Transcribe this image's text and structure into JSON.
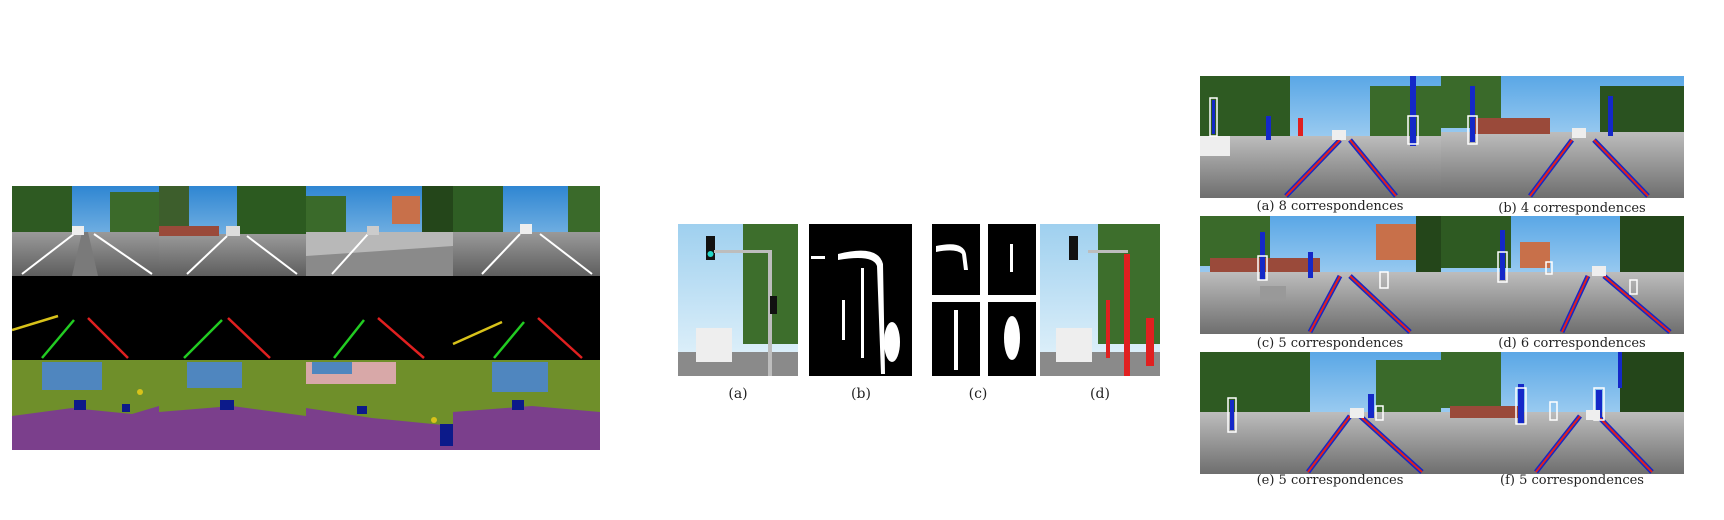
{
  "middle_figure": {
    "captions": [
      "(a)",
      "(b)",
      "(c)",
      "(d)"
    ]
  },
  "right_figure": {
    "captions": [
      "(a) 8 correspondences",
      "(b) 4 correspondences",
      "(c) 5 correspondences",
      "(d) 6 correspondences",
      "(e) 5 correspondences",
      "(f) 5 correspondences"
    ]
  },
  "colors": {
    "sky": "#4f9bd6",
    "road": "#8e8e8e",
    "vegetation": "#3a6b2a",
    "seg_road": "#7b3f8c",
    "seg_veg": "#6f8f2a",
    "seg_sky": "#4f86bf",
    "seg_car": "#0c1a8a",
    "line_red": "#e02020",
    "line_green": "#22cc22",
    "line_yellow": "#d8c21a",
    "line_blue": "#1428c8"
  }
}
